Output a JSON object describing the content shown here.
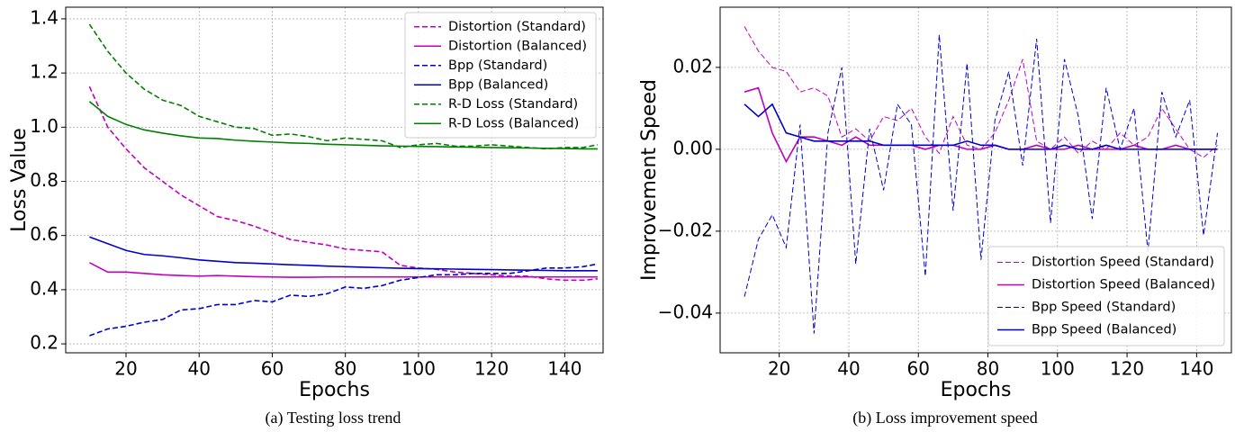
{
  "chart_data": [
    {
      "type": "line",
      "caption": "(a) Testing loss trend",
      "xlabel": "Epochs",
      "ylabel": "Loss Value",
      "x": [
        10,
        15,
        20,
        25,
        30,
        35,
        40,
        45,
        50,
        55,
        60,
        65,
        70,
        75,
        80,
        85,
        90,
        95,
        100,
        105,
        110,
        115,
        120,
        125,
        130,
        135,
        140,
        145,
        149
      ],
      "xlim": [
        3.5,
        150.5
      ],
      "xticks": [
        20,
        40,
        60,
        80,
        100,
        120,
        140
      ],
      "ylim": [
        0.167,
        1.443
      ],
      "yticks": [
        0.2,
        0.4,
        0.6,
        0.8,
        {
          "value": 1,
          "label": "1.0"
        },
        1.2,
        1.4
      ],
      "grid": true,
      "legend": "upper right",
      "series": [
        {
          "name": "Distortion (Standard)",
          "color": "#c000c0",
          "linestyle": "dashed",
          "values": [
            1.15,
            1.0,
            0.92,
            0.85,
            0.8,
            0.75,
            0.71,
            0.67,
            0.655,
            0.635,
            0.61,
            0.585,
            0.575,
            0.565,
            0.55,
            0.545,
            0.54,
            0.49,
            0.48,
            0.475,
            0.465,
            0.46,
            0.455,
            0.45,
            0.45,
            0.44,
            0.435,
            0.435,
            0.44
          ]
        },
        {
          "name": "Distortion (Balanced)",
          "color": "#c000c0",
          "linestyle": "solid",
          "values": [
            0.5,
            0.465,
            0.465,
            0.46,
            0.455,
            0.452,
            0.45,
            0.452,
            0.45,
            0.448,
            0.447,
            0.446,
            0.446,
            0.447,
            0.447,
            0.447,
            0.447,
            0.447,
            0.447,
            0.447,
            0.447,
            0.447,
            0.447,
            0.447,
            0.447,
            0.447,
            0.447,
            0.447,
            0.447
          ]
        },
        {
          "name": "Bpp (Standard)",
          "color": "#0000cc",
          "linestyle": "dashed",
          "values": [
            0.23,
            0.255,
            0.265,
            0.28,
            0.29,
            0.325,
            0.33,
            0.345,
            0.345,
            0.36,
            0.355,
            0.38,
            0.375,
            0.385,
            0.41,
            0.405,
            0.415,
            0.435,
            0.445,
            0.455,
            0.455,
            0.46,
            0.46,
            0.46,
            0.47,
            0.48,
            0.48,
            0.485,
            0.495
          ]
        },
        {
          "name": "Bpp (Balanced)",
          "color": "#0000cc",
          "linestyle": "solid",
          "values": [
            0.595,
            0.57,
            0.545,
            0.53,
            0.525,
            0.518,
            0.51,
            0.505,
            0.5,
            0.498,
            0.495,
            0.492,
            0.49,
            0.487,
            0.485,
            0.483,
            0.481,
            0.479,
            0.478,
            0.477,
            0.476,
            0.475,
            0.474,
            0.473,
            0.472,
            0.471,
            0.47,
            0.47,
            0.47
          ]
        },
        {
          "name": "R-D Loss (Standard)",
          "color": "#008000",
          "linestyle": "dashed",
          "values": [
            1.38,
            1.28,
            1.2,
            1.14,
            1.1,
            1.08,
            1.04,
            1.02,
            1.0,
            0.995,
            0.97,
            0.975,
            0.965,
            0.95,
            0.96,
            0.955,
            0.95,
            0.925,
            0.935,
            0.94,
            0.93,
            0.93,
            0.935,
            0.93,
            0.925,
            0.92,
            0.925,
            0.925,
            0.935
          ]
        },
        {
          "name": "R-D Loss (Balanced)",
          "color": "#008000",
          "linestyle": "solid",
          "values": [
            1.095,
            1.04,
            1.01,
            0.99,
            0.978,
            0.968,
            0.96,
            0.958,
            0.952,
            0.948,
            0.945,
            0.942,
            0.94,
            0.937,
            0.935,
            0.933,
            0.931,
            0.93,
            0.929,
            0.928,
            0.927,
            0.926,
            0.925,
            0.924,
            0.923,
            0.922,
            0.921,
            0.92,
            0.92
          ]
        }
      ]
    },
    {
      "type": "line",
      "caption": "(b) Loss improvement speed",
      "xlabel": "Epochs",
      "ylabel": "Improvement Speed",
      "x": [
        10,
        14,
        18,
        22,
        26,
        30,
        34,
        38,
        42,
        46,
        50,
        54,
        58,
        62,
        66,
        70,
        74,
        78,
        82,
        86,
        90,
        94,
        98,
        102,
        106,
        110,
        114,
        118,
        122,
        126,
        130,
        134,
        138,
        142,
        146
      ],
      "xlim": [
        3,
        150
      ],
      "xticks": [
        20,
        40,
        60,
        80,
        100,
        120,
        140
      ],
      "ylim": [
        -0.0497,
        0.0347
      ],
      "yticks": [
        {
          "value": -0.04,
          "label": "−0.04"
        },
        {
          "value": -0.02,
          "label": "−0.02"
        },
        {
          "value": 0,
          "label": "0.00"
        },
        0.02
      ],
      "grid": true,
      "legend": "lower right",
      "series": [
        {
          "name": "Distortion Speed (Standard)",
          "color": "#c000c0",
          "linestyle": "dashed",
          "values": [
            0.03,
            0.024,
            0.02,
            0.019,
            0.014,
            0.015,
            0.013,
            0.003,
            0.005,
            0.002,
            0.008,
            0.007,
            0.01,
            0.003,
            -0.001,
            0.008,
            0.001,
            0,
            0.004,
            0.012,
            0.022,
            0.002,
            0,
            0.003,
            -0.001,
            0.002,
            0,
            0.004,
            0.001,
            0.003,
            0.01,
            0.005,
            0,
            -0.002,
            0.001
          ]
        },
        {
          "name": "Distortion Speed (Balanced)",
          "color": "#c000c0",
          "linestyle": "solid",
          "values": [
            0.014,
            0.015,
            0.004,
            -0.003,
            0.003,
            0.003,
            0.002,
            0.001,
            0.003,
            0.001,
            0.001,
            0.001,
            0.001,
            0,
            0.001,
            0.001,
            0,
            0,
            0.001,
            0,
            0,
            0.001,
            0,
            0,
            0.001,
            0,
            0,
            0,
            0.001,
            0,
            0,
            0.001,
            0,
            0,
            0
          ]
        },
        {
          "name": "Bpp Speed (Standard)",
          "color": "#0000cc",
          "linestyle": "dashed",
          "values": [
            -0.036,
            -0.022,
            -0.016,
            -0.024,
            0.006,
            -0.045,
            0.004,
            0.02,
            -0.028,
            0.005,
            -0.01,
            0.011,
            0.006,
            -0.031,
            0.028,
            -0.015,
            0.021,
            -0.027,
            0.007,
            0.019,
            -0.004,
            0.027,
            -0.018,
            0.022,
            0.008,
            -0.017,
            0.015,
            0,
            0.01,
            -0.025,
            0.014,
            0.003,
            0.012,
            -0.021,
            0.004
          ]
        },
        {
          "name": "Bpp Speed (Balanced)",
          "color": "#0000cc",
          "linestyle": "solid",
          "values": [
            0.011,
            0.008,
            0.011,
            0.004,
            0.003,
            0.002,
            0.002,
            0.002,
            0.002,
            0.002,
            0.001,
            0.001,
            0.001,
            0.001,
            0.001,
            0.001,
            0.002,
            0.001,
            0.001,
            0,
            0,
            0,
            0,
            0.001,
            0,
            0,
            0.001,
            0,
            0,
            0,
            0,
            0,
            0,
            0,
            0
          ]
        }
      ]
    }
  ]
}
